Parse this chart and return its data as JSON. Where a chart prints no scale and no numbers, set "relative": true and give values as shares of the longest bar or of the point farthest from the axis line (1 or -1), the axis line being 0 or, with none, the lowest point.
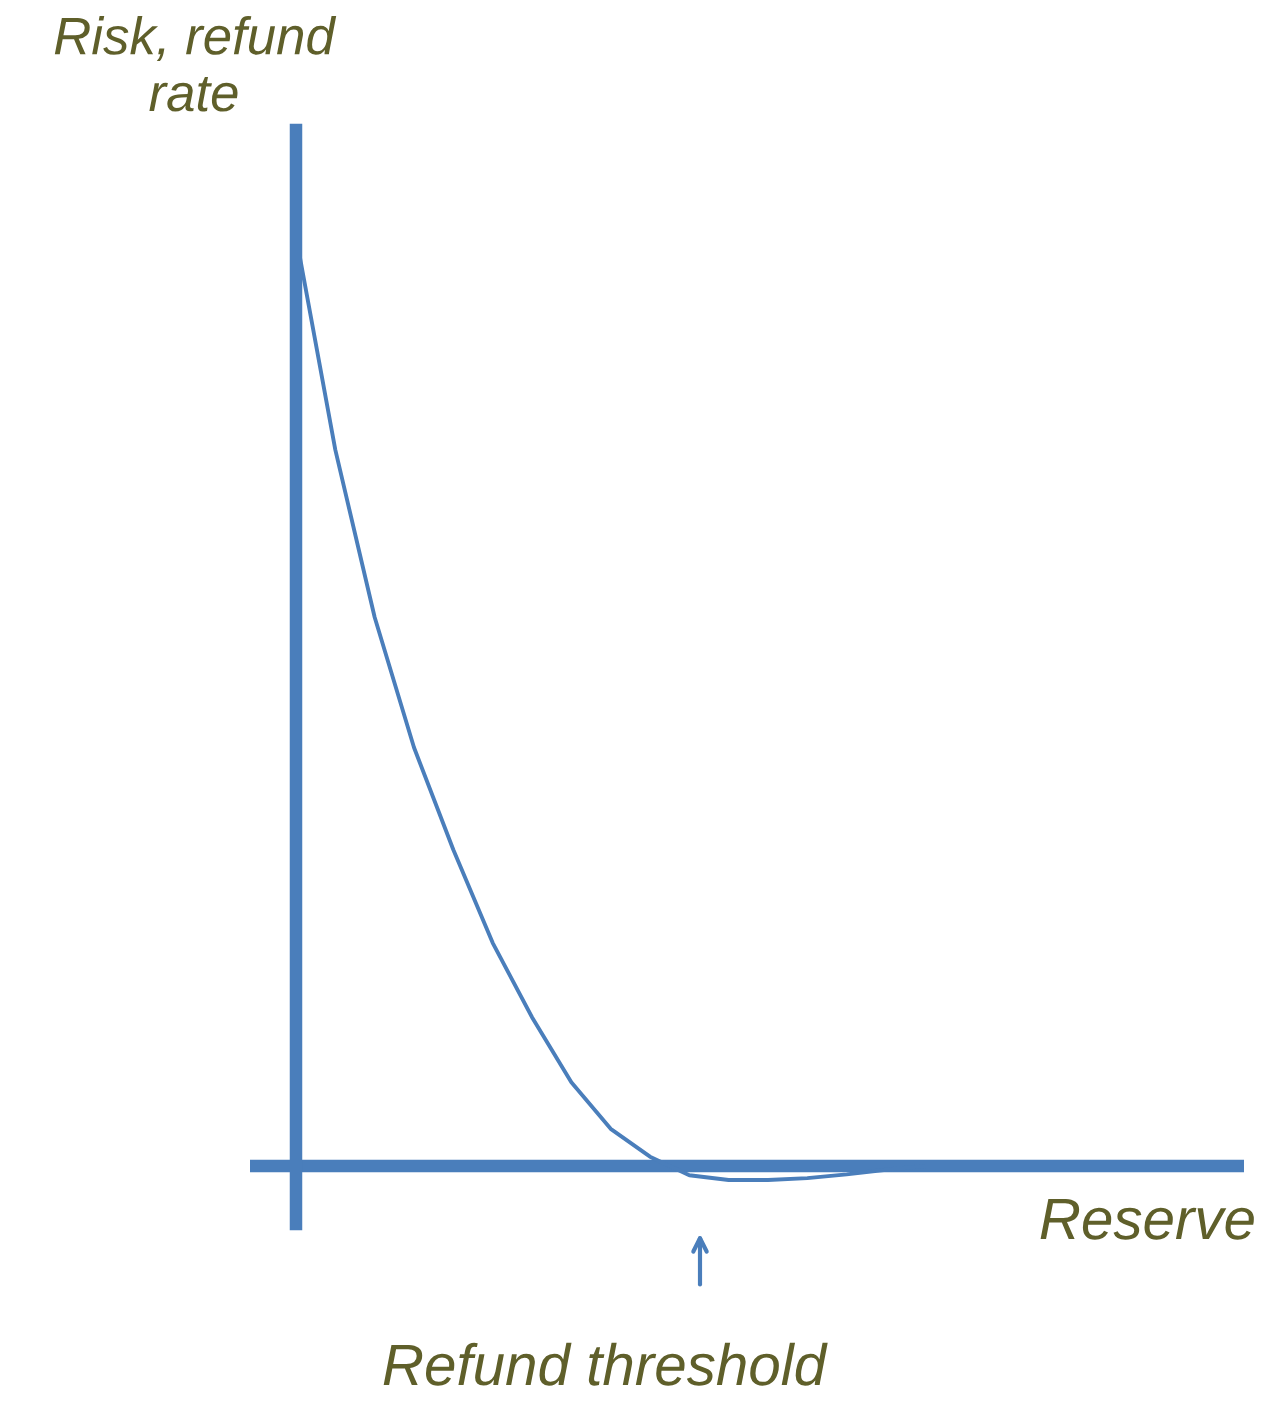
{
  "chart_data": {
    "type": "line",
    "relative": true,
    "xlabel": "Reserve",
    "ylabel": "Risk, refund rate",
    "categories": [
      null,
      null,
      null,
      null,
      null,
      null,
      null,
      null,
      null,
      null,
      null,
      null,
      null,
      null,
      null,
      null,
      null,
      null,
      null,
      null,
      null,
      null,
      null,
      null,
      null
    ],
    "series": [
      {
        "color": "#4a7ebb",
        "values": [
          1.0,
          0.77,
          0.59,
          0.45,
          0.34,
          0.24,
          0.16,
          0.09,
          0.04,
          0.01,
          -0.01,
          -0.015,
          -0.015,
          -0.013,
          -0.009,
          -0.004,
          0,
          0,
          0,
          0,
          0,
          0,
          0,
          0,
          0
        ]
      }
    ],
    "ref_lines": [
      {
        "axis": "y",
        "value": 0,
        "color": "#4a7ebb"
      }
    ],
    "annotations": [
      "Refund threshold"
    ]
  }
}
